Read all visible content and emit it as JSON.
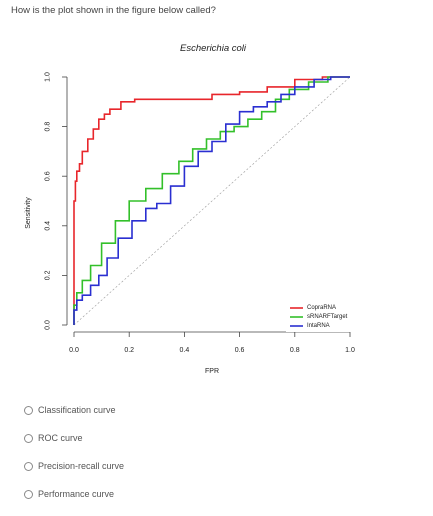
{
  "question": {
    "text": "How is the plot shown in the figure below called?"
  },
  "chart_data": {
    "type": "line",
    "title": "Escherichia coli",
    "xlabel": "FPR",
    "ylabel": "Sensitivity",
    "xlim": [
      0,
      1
    ],
    "ylim": [
      0,
      1
    ],
    "x_ticks": [
      "0.0",
      "0.2",
      "0.4",
      "0.6",
      "0.8",
      "1.0"
    ],
    "y_ticks": [
      "0.0",
      "0.2",
      "0.4",
      "0.6",
      "0.8",
      "1.0"
    ],
    "legend_position": "bottom-right",
    "diagonal": true,
    "series": [
      {
        "name": "CopraRNA",
        "color": "#e8262b",
        "x": [
          0,
          0,
          0.005,
          0.01,
          0.02,
          0.03,
          0.05,
          0.07,
          0.09,
          0.11,
          0.13,
          0.17,
          0.22,
          0.3,
          0.4,
          0.5,
          0.6,
          0.7,
          0.8,
          0.9,
          1.0
        ],
        "y": [
          0,
          0.25,
          0.5,
          0.58,
          0.62,
          0.65,
          0.7,
          0.75,
          0.79,
          0.83,
          0.85,
          0.87,
          0.9,
          0.91,
          0.91,
          0.91,
          0.93,
          0.94,
          0.96,
          0.99,
          1.0
        ]
      },
      {
        "name": "sRNARFTarget",
        "color": "#33c02a",
        "x": [
          0,
          0.01,
          0.03,
          0.06,
          0.1,
          0.15,
          0.2,
          0.26,
          0.32,
          0.38,
          0.43,
          0.48,
          0.53,
          0.58,
          0.63,
          0.68,
          0.73,
          0.78,
          0.85,
          0.92,
          1.0
        ],
        "y": [
          0,
          0.08,
          0.13,
          0.18,
          0.24,
          0.33,
          0.42,
          0.5,
          0.55,
          0.61,
          0.66,
          0.71,
          0.75,
          0.78,
          0.8,
          0.83,
          0.86,
          0.91,
          0.95,
          0.98,
          1.0
        ]
      },
      {
        "name": "IntaRNA",
        "color": "#2a2fd1",
        "x": [
          0,
          0.01,
          0.03,
          0.06,
          0.09,
          0.12,
          0.16,
          0.21,
          0.26,
          0.3,
          0.35,
          0.4,
          0.45,
          0.5,
          0.55,
          0.6,
          0.65,
          0.7,
          0.75,
          0.8,
          0.87,
          0.93,
          1.0
        ],
        "y": [
          0,
          0.06,
          0.1,
          0.12,
          0.16,
          0.2,
          0.27,
          0.35,
          0.42,
          0.47,
          0.49,
          0.56,
          0.64,
          0.7,
          0.74,
          0.81,
          0.86,
          0.88,
          0.9,
          0.93,
          0.96,
          0.99,
          1.0
        ]
      }
    ]
  },
  "answer_options": [
    {
      "label": "Classification curve"
    },
    {
      "label": "ROC curve"
    },
    {
      "label": "Precision-recall curve"
    },
    {
      "label": "Performance curve"
    }
  ]
}
